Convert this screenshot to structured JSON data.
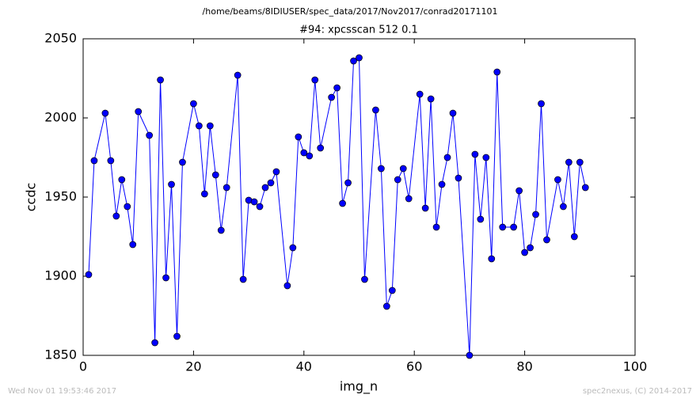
{
  "chart_data": {
    "type": "line",
    "suptitle": "/home/beams/8IDIUSER/spec_data/2017/Nov2017/conrad20171101",
    "title": "#94: xpcsscan 512 0.1",
    "xlabel": "img_n",
    "ylabel": "ccdc",
    "footer_left": "Wed Nov 01 19:53:46 2017",
    "footer_right": "spec2nexus, (C) 2014-2017",
    "x": [
      1,
      2,
      4,
      5,
      6,
      7,
      8,
      9,
      10,
      12,
      13,
      14,
      15,
      16,
      17,
      18,
      20,
      21,
      22,
      23,
      24,
      25,
      26,
      28,
      29,
      30,
      31,
      32,
      33,
      34,
      35,
      37,
      38,
      39,
      40,
      41,
      42,
      43,
      45,
      46,
      47,
      48,
      49,
      50,
      51,
      53,
      54,
      55,
      56,
      57,
      58,
      59,
      61,
      62,
      63,
      64,
      65,
      66,
      67,
      68,
      70,
      71,
      72,
      73,
      74,
      75,
      76,
      78,
      79,
      80,
      81,
      82,
      83,
      84,
      86,
      87,
      88,
      89,
      90,
      91
    ],
    "series": [
      {
        "name": "ccdc",
        "color": "#0000ff",
        "values": [
          1901,
          1973,
          2003,
          1973,
          1938,
          1961,
          1944,
          1920,
          2004,
          1989,
          1858,
          2024,
          1899,
          1958,
          1862,
          1972,
          2009,
          1995,
          1952,
          1995,
          1964,
          1929,
          1956,
          2027,
          1898,
          1948,
          1947,
          1944,
          1956,
          1959,
          1966,
          1894,
          1918,
          1988,
          1978,
          1976,
          2024,
          1981,
          2013,
          2019,
          1946,
          1959,
          2036,
          2038,
          1898,
          2005,
          1968,
          1881,
          1891,
          1961,
          1968,
          1949,
          2015,
          1943,
          2012,
          1931,
          1958,
          1975,
          2003,
          1962,
          1850,
          1977,
          1936,
          1975,
          1911,
          2029,
          1931,
          1931,
          1954,
          1915,
          1918,
          1939,
          2009,
          1923,
          1961,
          1944,
          1972,
          1925,
          1972,
          1956
        ]
      }
    ],
    "xlim": [
      0,
      100
    ],
    "xticks": [
      0,
      20,
      40,
      60,
      80,
      100
    ],
    "ylim": [
      1850,
      2050
    ],
    "yticks": [
      1850,
      1900,
      1950,
      2000,
      2050
    ]
  }
}
